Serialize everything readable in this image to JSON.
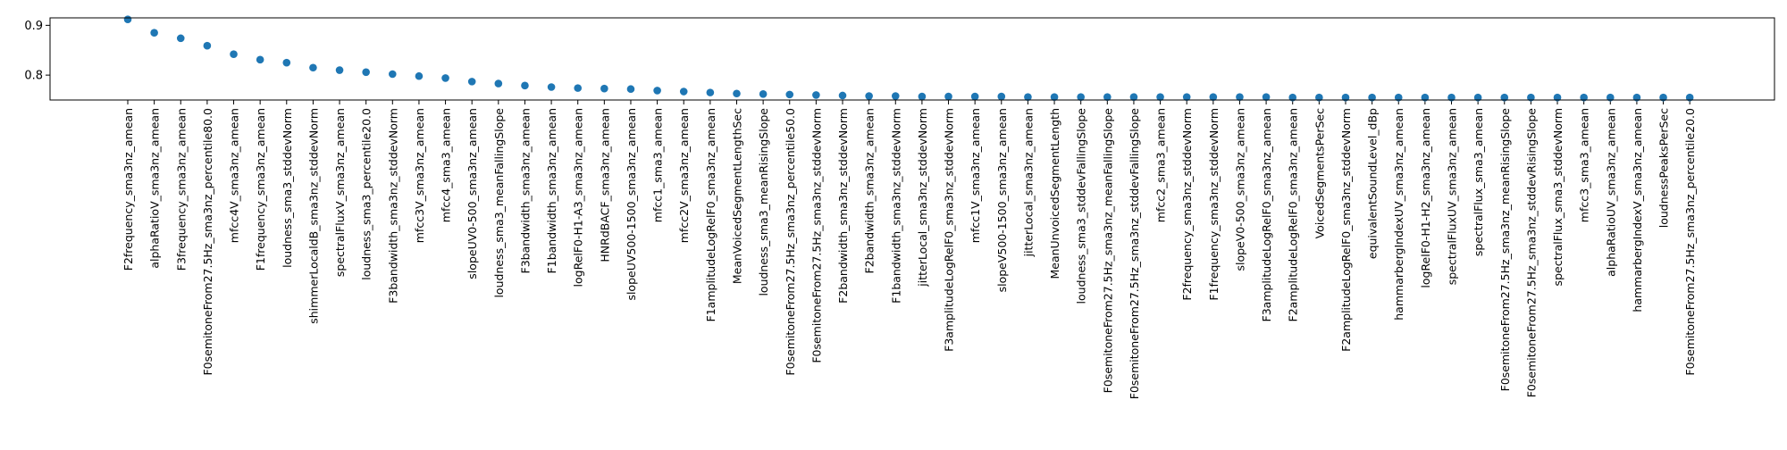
{
  "chart_data": {
    "type": "scatter",
    "title": "",
    "xlabel": "",
    "ylabel": "",
    "ylim": [
      0.75,
      0.915
    ],
    "yticks": [
      0.8,
      0.9
    ],
    "ytick_labels": [
      "0.8",
      "0.9"
    ],
    "grid": false,
    "marker_color": "#1f77b4",
    "categories": [
      "F2frequency_sma3nz_amean",
      "alphaRatioV_sma3nz_amean",
      "F3frequency_sma3nz_amean",
      "F0semitoneFrom27.5Hz_sma3nz_percentile80.0",
      "mfcc4V_sma3nz_amean",
      "F1frequency_sma3nz_amean",
      "loudness_sma3_stddevNorm",
      "shimmerLocaldB_sma3nz_stddevNorm",
      "spectralFluxV_sma3nz_amean",
      "loudness_sma3_percentile20.0",
      "F3bandwidth_sma3nz_stddevNorm",
      "mfcc3V_sma3nz_amean",
      "mfcc4_sma3_amean",
      "slopeUV0-500_sma3nz_amean",
      "loudness_sma3_meanFallingSlope",
      "F3bandwidth_sma3nz_amean",
      "F1bandwidth_sma3nz_amean",
      "logRelF0-H1-A3_sma3nz_amean",
      "HNRdBACF_sma3nz_amean",
      "slopeUV500-1500_sma3nz_amean",
      "mfcc1_sma3_amean",
      "mfcc2V_sma3nz_amean",
      "F1amplitudeLogRelF0_sma3nz_amean",
      "MeanVoicedSegmentLengthSec",
      "loudness_sma3_meanRisingSlope",
      "F0semitoneFrom27.5Hz_sma3nz_percentile50.0",
      "F0semitoneFrom27.5Hz_sma3nz_stddevNorm",
      "F2bandwidth_sma3nz_stddevNorm",
      "F2bandwidth_sma3nz_amean",
      "F1bandwidth_sma3nz_stddevNorm",
      "jitterLocal_sma3nz_stddevNorm",
      "F3amplitudeLogRelF0_sma3nz_stddevNorm",
      "mfcc1V_sma3nz_amean",
      "slopeV500-1500_sma3nz_amean",
      "jitterLocal_sma3nz_amean",
      "MeanUnvoicedSegmentLength",
      "loudness_sma3_stddevFallingSlope",
      "F0semitoneFrom27.5Hz_sma3nz_meanFallingSlope",
      "F0semitoneFrom27.5Hz_sma3nz_stddevFallingSlope",
      "mfcc2_sma3_amean",
      "F2frequency_sma3nz_stddevNorm",
      "F1frequency_sma3nz_stddevNorm",
      "slopeV0-500_sma3nz_amean",
      "F3amplitudeLogRelF0_sma3nz_amean",
      "F2amplitudeLogRelF0_sma3nz_amean",
      "VoicedSegmentsPerSec",
      "F2amplitudeLogRelF0_sma3nz_stddevNorm",
      "equivalentSoundLevel_dBp",
      "hammarbergIndexUV_sma3nz_amean",
      "logRelF0-H1-H2_sma3nz_amean",
      "spectralFluxUV_sma3nz_amean",
      "spectralFlux_sma3_amean",
      "F0semitoneFrom27.5Hz_sma3nz_meanRisingSlope",
      "F0semitoneFrom27.5Hz_sma3nz_stddevRisingSlope",
      "spectralFlux_sma3_stddevNorm",
      "mfcc3_sma3_amean",
      "alphaRatioUV_sma3nz_amean",
      "hammarbergIndexV_sma3nz_amean",
      "loudnessPeaksPerSec",
      "F0semitoneFrom27.5Hz_sma3nz_percentile20.0"
    ],
    "values": [
      0.912,
      0.885,
      0.874,
      0.859,
      0.842,
      0.831,
      0.825,
      0.815,
      0.81,
      0.806,
      0.802,
      0.798,
      0.794,
      0.787,
      0.783,
      0.779,
      0.776,
      0.774,
      0.773,
      0.772,
      0.769,
      0.767,
      0.765,
      0.763,
      0.762,
      0.761,
      0.76,
      0.759,
      0.758,
      0.758,
      0.757,
      0.757,
      0.757,
      0.757,
      0.756,
      0.756,
      0.756,
      0.756,
      0.756,
      0.756,
      0.756,
      0.756,
      0.756,
      0.756,
      0.755,
      0.755,
      0.755,
      0.755,
      0.755,
      0.755,
      0.755,
      0.755,
      0.755,
      0.755,
      0.755,
      0.755,
      0.755,
      0.755,
      0.755,
      0.755
    ]
  }
}
